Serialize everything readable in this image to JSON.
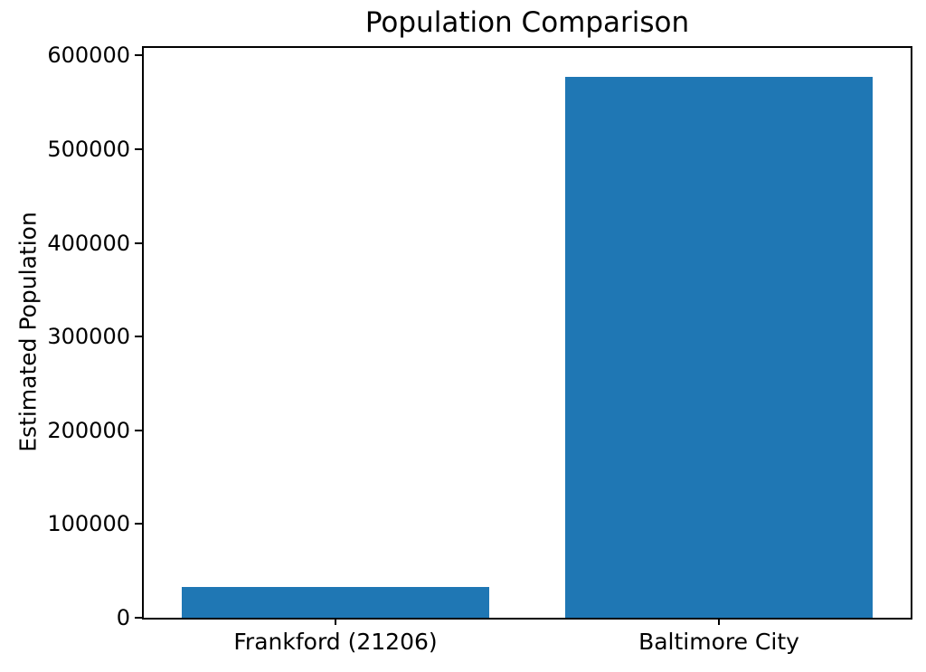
{
  "figure": {
    "background": "#ffffff",
    "text_color": "#000000"
  },
  "chart_data": {
    "type": "bar",
    "title": "Population Comparison",
    "xlabel": "",
    "ylabel": "Estimated Population",
    "categories": [
      "Frankford (21206)",
      "Baltimore City"
    ],
    "values": [
      33000,
      577000
    ],
    "bar_color": "#1f77b4",
    "bar_width_fraction": 0.8,
    "ylim": [
      0,
      608000
    ],
    "yticks": [
      0,
      100000,
      200000,
      300000,
      400000,
      500000,
      600000
    ],
    "ytick_labels": [
      "0",
      "100000",
      "200000",
      "300000",
      "400000",
      "500000",
      "600000"
    ],
    "grid": false,
    "legend_position": "none"
  }
}
